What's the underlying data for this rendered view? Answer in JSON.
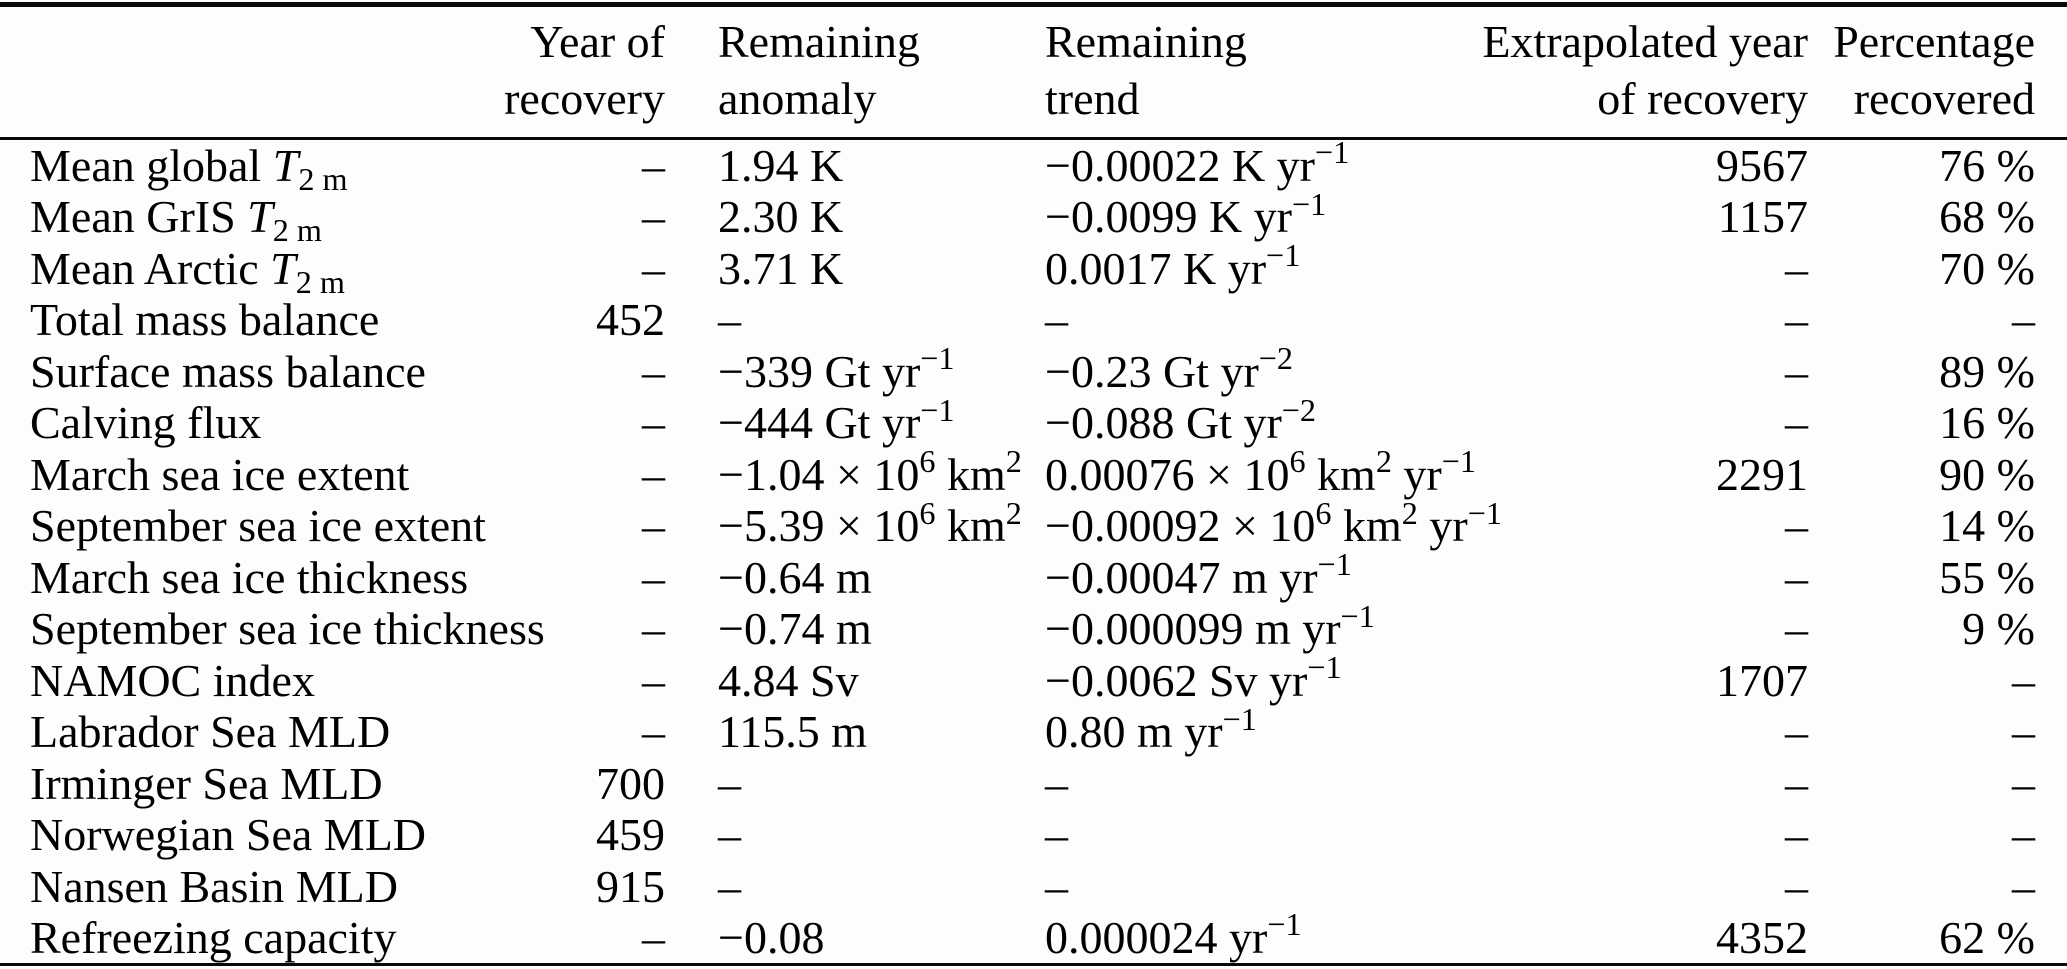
{
  "table": {
    "columns": [
      {
        "id": "indicator",
        "lines": [
          "",
          ""
        ]
      },
      {
        "id": "year-of-recovery",
        "lines": [
          "Year of",
          "recovery"
        ]
      },
      {
        "id": "remaining-anomaly",
        "lines": [
          "Remaining",
          "anomaly"
        ]
      },
      {
        "id": "remaining-trend",
        "lines": [
          "Remaining",
          "trend"
        ]
      },
      {
        "id": "extrapolated-year-of-recovery",
        "lines": [
          "Extrapolated year",
          "of recovery"
        ]
      },
      {
        "id": "percentage-recovered",
        "lines": [
          "Percentage",
          "recovered"
        ]
      }
    ],
    "missing_marker": "–",
    "rows": [
      {
        "cells": [
          "Mean global *T*_{2 m}",
          "–",
          "1.94 K",
          "−0.00022 K yr^{−1}",
          "9567",
          "76 %"
        ]
      },
      {
        "cells": [
          "Mean GrIS *T*_{2 m}",
          "–",
          "2.30 K",
          "−0.0099 K yr^{−1}",
          "1157",
          "68 %"
        ]
      },
      {
        "cells": [
          "Mean Arctic *T*_{2 m}",
          "–",
          "3.71 K",
          "0.0017 K yr^{−1}",
          "–",
          "70 %"
        ]
      },
      {
        "cells": [
          "Total mass balance",
          "452",
          "–",
          "–",
          "–",
          "–"
        ]
      },
      {
        "cells": [
          "Surface mass balance",
          "–",
          "−339 Gt yr^{−1}",
          "−0.23 Gt yr^{−2}",
          "–",
          "89 %"
        ]
      },
      {
        "cells": [
          "Calving flux",
          "–",
          "−444 Gt yr^{−1}",
          "−0.088 Gt yr^{−2}",
          "–",
          "16 %"
        ]
      },
      {
        "cells": [
          "March sea ice extent",
          "–",
          "−1.04 × 10^{6} km^{2}",
          "0.00076 × 10^{6} km^{2} yr^{−1}",
          "2291",
          "90 %"
        ]
      },
      {
        "cells": [
          "September sea ice extent",
          "–",
          "−5.39 × 10^{6} km^{2}",
          "−0.00092 × 10^{6} km^{2} yr^{−1}",
          "–",
          "14 %"
        ]
      },
      {
        "cells": [
          "March sea ice thickness",
          "–",
          "−0.64 m",
          "−0.00047 m yr^{−1}",
          "–",
          "55 %"
        ]
      },
      {
        "cells": [
          "September sea ice thickness",
          "–",
          "−0.74 m",
          "−0.000099 m yr^{−1}",
          "–",
          "9 %"
        ]
      },
      {
        "cells": [
          "NAMOC index",
          "–",
          "4.84 Sv",
          "−0.0062 Sv yr^{−1}",
          "1707",
          "–"
        ]
      },
      {
        "cells": [
          "Labrador Sea MLD",
          "–",
          "115.5 m",
          "0.80 m yr^{−1}",
          "–",
          "–"
        ]
      },
      {
        "cells": [
          "Irminger Sea MLD",
          "700",
          "–",
          "–",
          "–",
          "–"
        ]
      },
      {
        "cells": [
          "Norwegian Sea MLD",
          "459",
          "–",
          "–",
          "–",
          "–"
        ]
      },
      {
        "cells": [
          "Nansen Basin MLD",
          "915",
          "–",
          "–",
          "–",
          "–"
        ]
      },
      {
        "cells": [
          "Refreezing capacity",
          "–",
          "−0.08",
          "0.000024 yr^{−1}",
          "4352",
          "62 %"
        ]
      }
    ]
  },
  "colors": {
    "text": "#000000",
    "rule": "#0a0a0a",
    "background": "#fdfdfd"
  }
}
